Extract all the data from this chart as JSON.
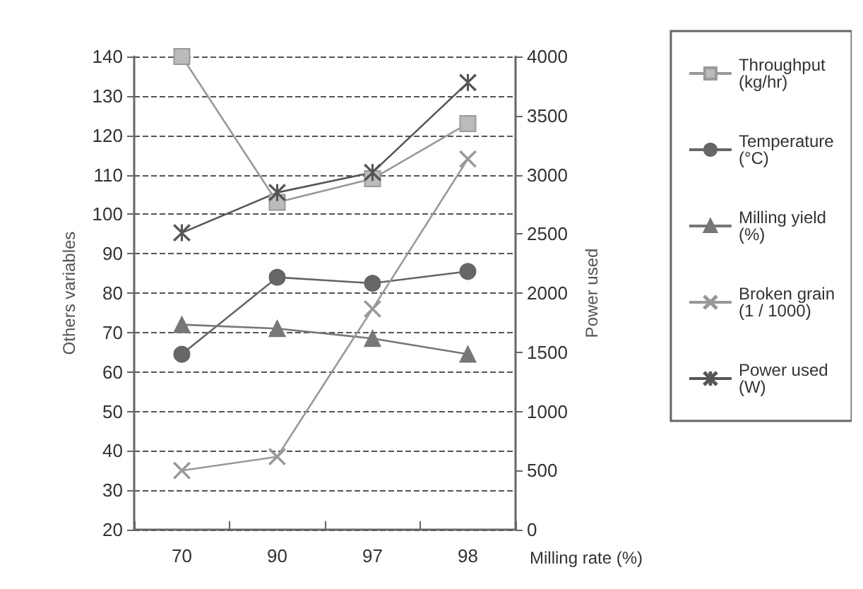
{
  "chart_data": {
    "type": "line",
    "xlabel": "Milling rate (%)",
    "ylabel": "Others variables",
    "y2label": "Power used",
    "categories": [
      "70",
      "90",
      "97",
      "98"
    ],
    "series": [
      {
        "name": "Throughput (kg/hr)",
        "color": "#999999",
        "marker": "square",
        "values": [
          140,
          103,
          109,
          123
        ]
      },
      {
        "name": "Temperature (°C)",
        "color": "#666666",
        "marker": "circle",
        "values": [
          64.5,
          84,
          82.5,
          85.5
        ]
      },
      {
        "name": "Milling yield (%)",
        "color": "#777777",
        "marker": "triangle",
        "values": [
          72,
          71,
          68.5,
          64.5
        ]
      },
      {
        "name": "Broken grain (1 / 1000)",
        "color": "#999999",
        "marker": "cross",
        "values": [
          35,
          38.5,
          76,
          114
        ]
      },
      {
        "name": "Power used (W)",
        "color": "#555555",
        "marker": "star",
        "axis": "y2",
        "values": [
          2510,
          2850,
          3020,
          3780
        ]
      }
    ],
    "ylim": [
      20,
      140
    ],
    "yticks": [
      20,
      30,
      40,
      50,
      60,
      70,
      80,
      90,
      100,
      110,
      120,
      130,
      140
    ],
    "y2lim": [
      0,
      4000
    ],
    "y2ticks": [
      0,
      500,
      1000,
      1500,
      2000,
      2500,
      3000,
      3500,
      4000
    ],
    "grid": "y",
    "legend": "right",
    "line_style": "solid"
  }
}
